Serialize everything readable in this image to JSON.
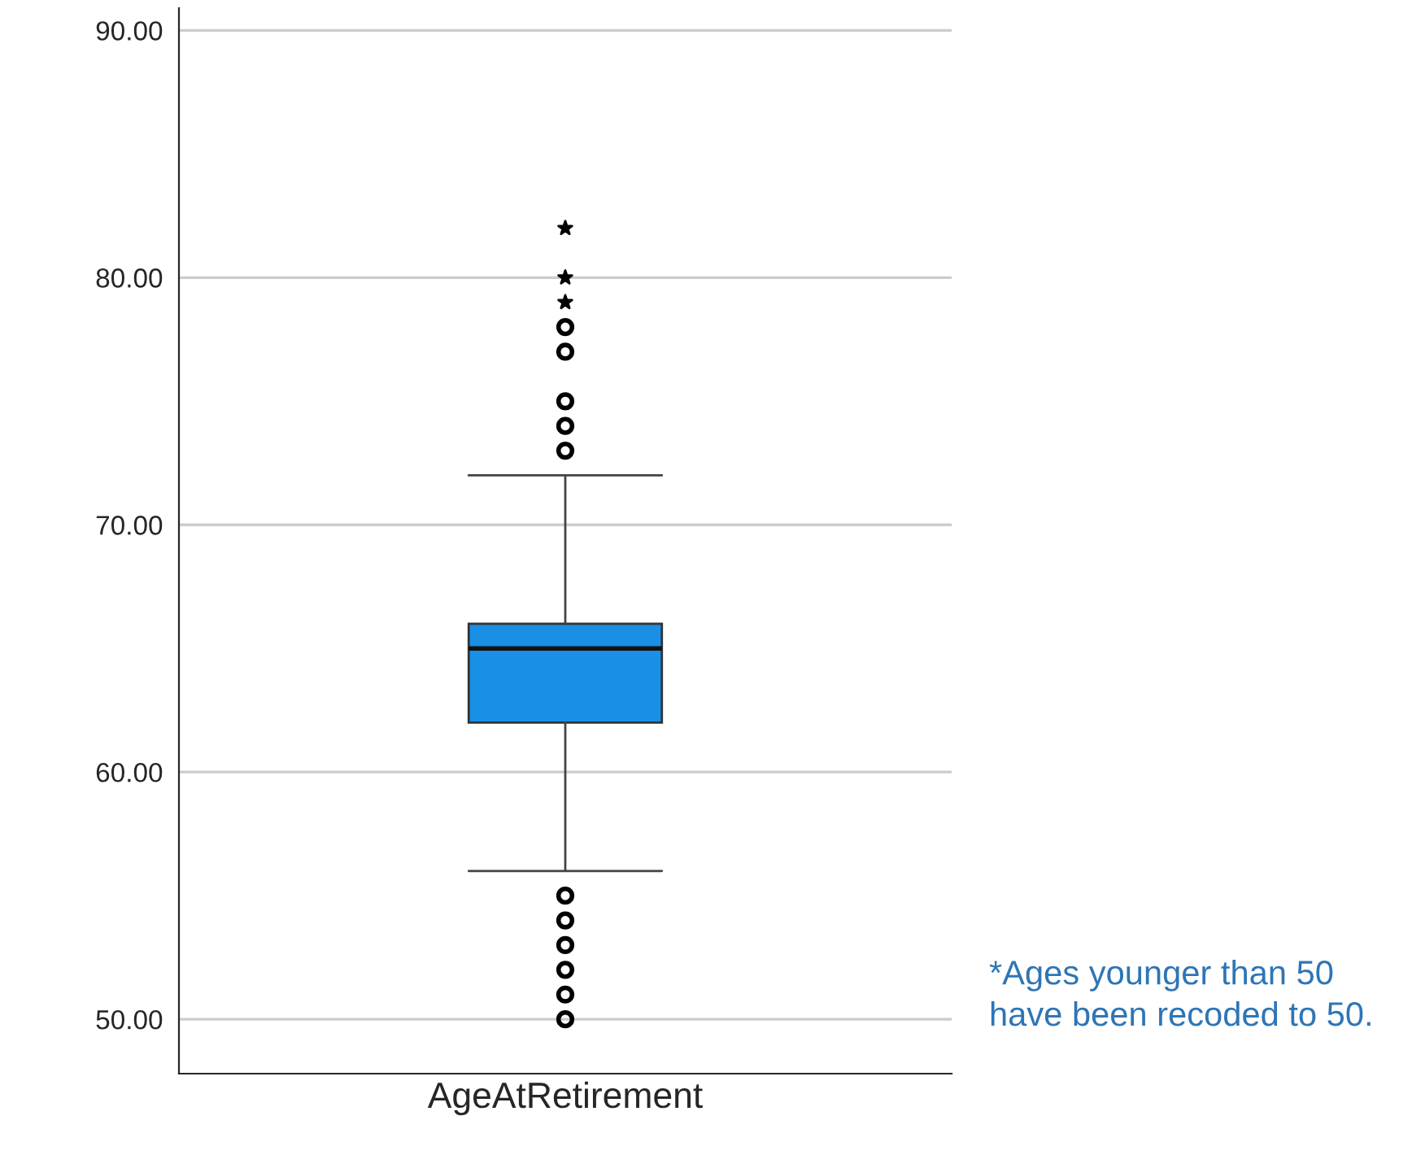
{
  "chart_data": {
    "type": "box",
    "categories": [
      "AgeAtRetirement"
    ],
    "color": "#1a8fe6",
    "marker": "circle",
    "boxes": [
      {
        "low": 56,
        "q1": 62,
        "median": 65,
        "q3": 66,
        "high": 72,
        "outliers": [
          50,
          51,
          52,
          53,
          54,
          55,
          73,
          74,
          75,
          77,
          78
        ]
      }
    ],
    "series": [
      {
        "type": "scatter",
        "marker": "star",
        "color": "#000000",
        "x": [
          "AgeAtRetirement",
          "AgeAtRetirement",
          "AgeAtRetirement"
        ],
        "values": [
          79,
          80,
          82
        ]
      }
    ],
    "ylim": [
      47.8,
      90.9
    ],
    "yticks": [
      {
        "value": 50,
        "label": "50.00"
      },
      {
        "value": 60,
        "label": "60.00"
      },
      {
        "value": 70,
        "label": "70.00"
      },
      {
        "value": 80,
        "label": "80.00"
      },
      {
        "value": 90,
        "label": "90.00"
      }
    ],
    "grid": "y",
    "annotations": [
      "*Ages younger than 50 have been recoded to 50."
    ]
  }
}
